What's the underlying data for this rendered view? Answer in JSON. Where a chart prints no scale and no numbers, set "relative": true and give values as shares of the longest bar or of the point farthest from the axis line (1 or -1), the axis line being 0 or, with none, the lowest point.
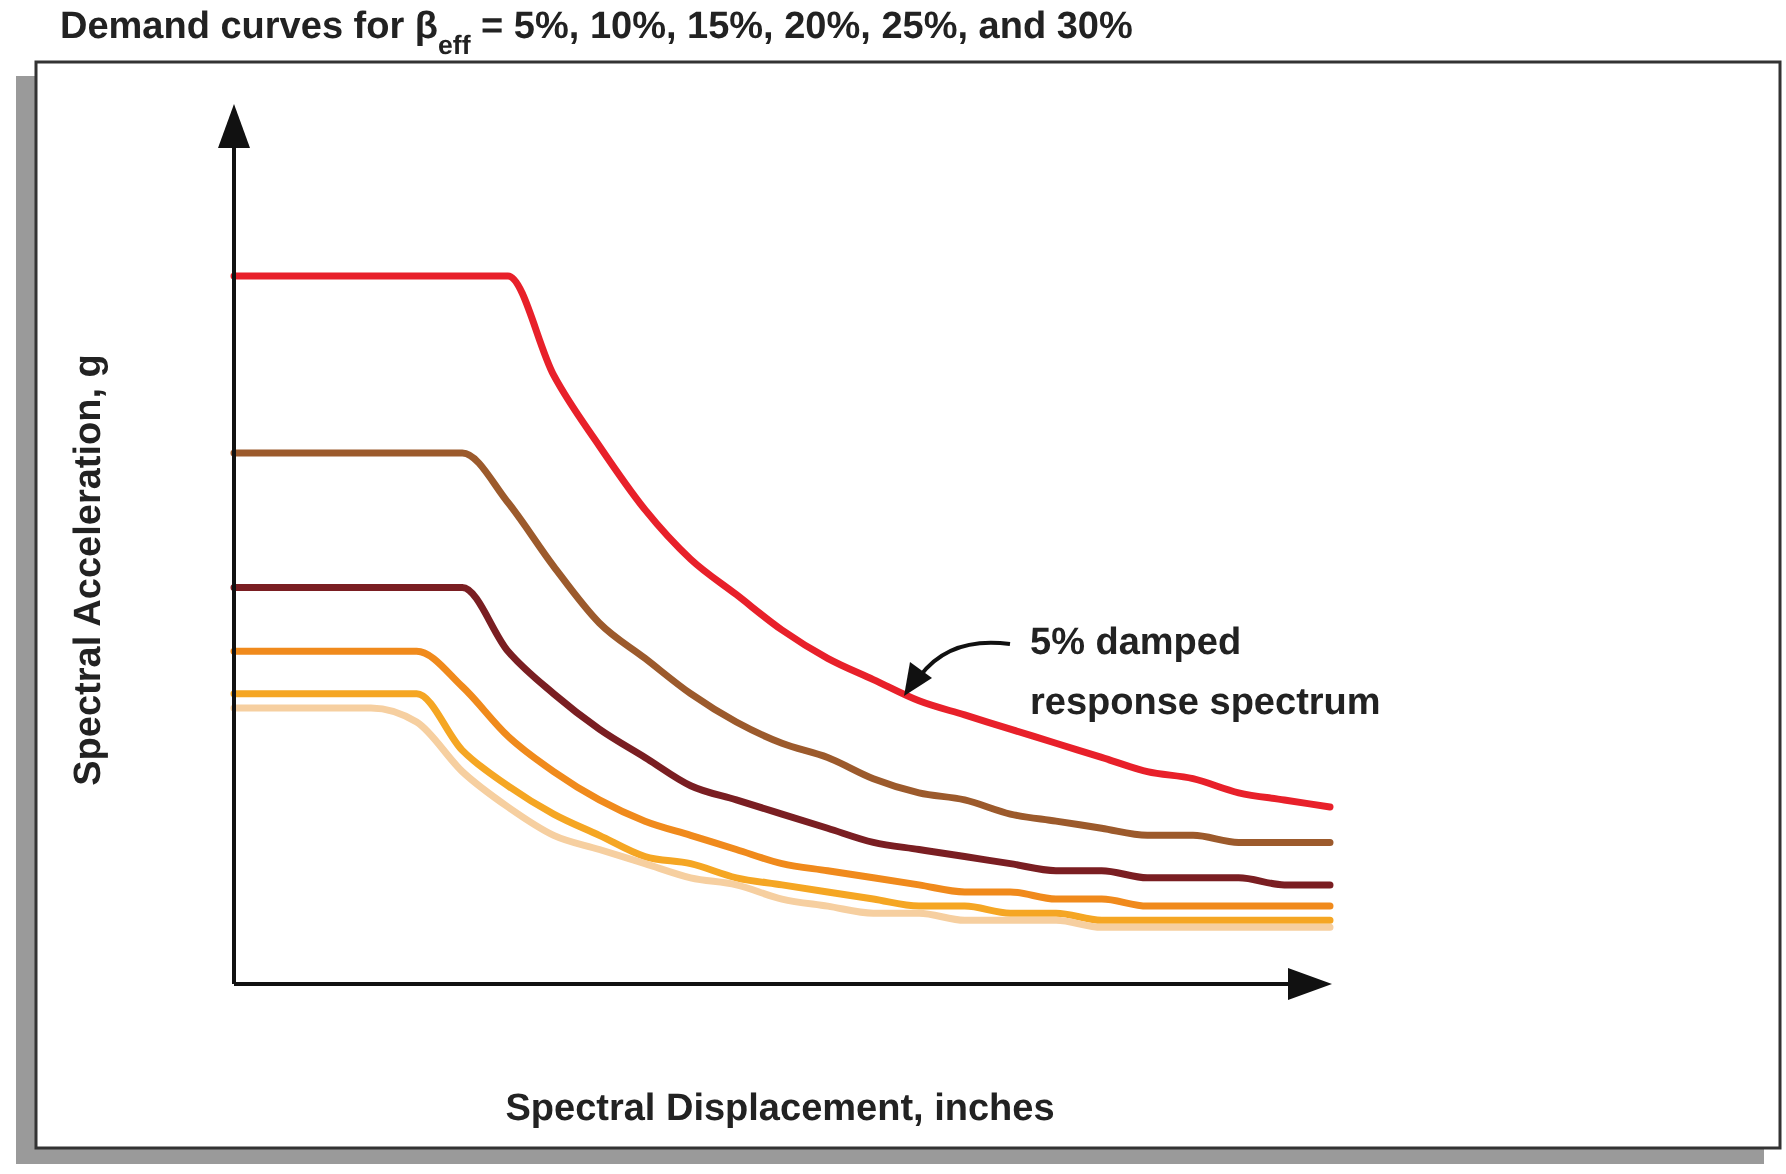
{
  "chart_data": {
    "type": "line",
    "relative": true,
    "title": "Demand curves for β$_{eff}$ = 5%, 10%, 15%, 20%, 25%, and 30%",
    "xlabel": "Spectral Displacement, inches",
    "ylabel": "Spectral Acceleration, g",
    "annotations": [
      "5% damped response spectrum"
    ],
    "grid": false,
    "marker": "none",
    "line_style": "solid",
    "categories": [
      null,
      null,
      null,
      null,
      null,
      null,
      null,
      null,
      null,
      null,
      null,
      null,
      null,
      null,
      null,
      null,
      null,
      null,
      null,
      null,
      null,
      null,
      null,
      null,
      null
    ],
    "series": [
      {
        "color": "#e8202a",
        "values": [
          1,
          1,
          1,
          1,
          1,
          1,
          1,
          0.86,
          0.76,
          0.67,
          0.6,
          0.55,
          0.5,
          0.46,
          0.43,
          0.4,
          0.38,
          0.36,
          0.34,
          0.32,
          0.3,
          0.29,
          0.27,
          0.26,
          0.25
        ]
      },
      {
        "color": "#9c5a2c",
        "values": [
          0.75,
          0.75,
          0.75,
          0.75,
          0.75,
          0.75,
          0.68,
          0.59,
          0.51,
          0.46,
          0.41,
          0.37,
          0.34,
          0.32,
          0.29,
          0.27,
          0.26,
          0.24,
          0.23,
          0.22,
          0.21,
          0.21,
          0.2,
          0.2,
          0.2
        ]
      },
      {
        "color": "#7a1e22",
        "values": [
          0.56,
          0.56,
          0.56,
          0.56,
          0.56,
          0.56,
          0.47,
          0.41,
          0.36,
          0.32,
          0.28,
          0.26,
          0.24,
          0.22,
          0.2,
          0.19,
          0.18,
          0.17,
          0.16,
          0.16,
          0.15,
          0.15,
          0.15,
          0.14,
          0.14
        ]
      },
      {
        "color": "#f08a1c",
        "values": [
          0.47,
          0.47,
          0.47,
          0.47,
          0.47,
          0.42,
          0.35,
          0.3,
          0.26,
          0.23,
          0.21,
          0.19,
          0.17,
          0.16,
          0.15,
          0.14,
          0.13,
          0.13,
          0.12,
          0.12,
          0.11,
          0.11,
          0.11,
          0.11,
          0.11
        ]
      },
      {
        "color": "#f5a623",
        "values": [
          0.41,
          0.41,
          0.41,
          0.41,
          0.41,
          0.33,
          0.28,
          0.24,
          0.21,
          0.18,
          0.17,
          0.15,
          0.14,
          0.13,
          0.12,
          0.11,
          0.11,
          0.1,
          0.1,
          0.09,
          0.09,
          0.09,
          0.09,
          0.09,
          0.09
        ]
      },
      {
        "color": "#f6cfa0",
        "values": [
          0.39,
          0.39,
          0.39,
          0.39,
          0.37,
          0.3,
          0.25,
          0.21,
          0.19,
          0.17,
          0.15,
          0.14,
          0.12,
          0.11,
          0.1,
          0.1,
          0.09,
          0.09,
          0.09,
          0.08,
          0.08,
          0.08,
          0.08,
          0.08,
          0.08
        ]
      }
    ]
  }
}
